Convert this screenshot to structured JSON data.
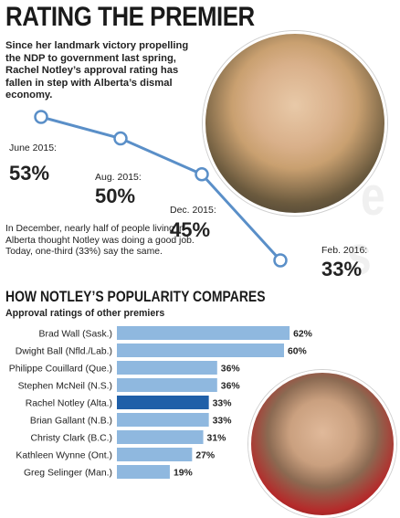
{
  "header": {
    "title": "RATING THE PREMIER",
    "intro": "Since her landmark victory propelling the NDP to government last spring, Rachel Notley’s approval rating has fallen in step with Alberta’s dismal economy."
  },
  "note": "In December, nearly half of people living in Alberta thought Notley was doing a good job. Today, one-third (33%) say the same.",
  "section": {
    "title": "HOW NOTLEY’S POPULARITY COMPARES",
    "subtitle": "Approval ratings of other premiers"
  },
  "colors": {
    "line": "#5a8fc8",
    "marker_fill": "#ffffff",
    "bar": "#8fb8df",
    "bar_highlight": "#1f5fa8",
    "text": "#1f1f1f"
  },
  "chart_data": [
    {
      "type": "line",
      "title": "",
      "points": [
        {
          "date_label": "June 2015:",
          "value_label": "53%",
          "value": 53
        },
        {
          "date_label": "Aug. 2015:",
          "value_label": "50%",
          "value": 50
        },
        {
          "date_label": "Dec. 2015:",
          "value_label": "45%",
          "value": 45
        },
        {
          "date_label": "Feb. 2016:",
          "value_label": "33%",
          "value": 33
        }
      ],
      "grid": false
    },
    {
      "type": "bar",
      "orientation": "horizontal",
      "categories": [
        "Brad Wall (Sask.)",
        "Dwight Ball (Nfld./Lab.)",
        "Philippe Couillard (Que.)",
        "Stephen McNeil (N.S.)",
        "Rachel Notley (Alta.)",
        "Brian Gallant (N.B.)",
        "Christy Clark (B.C.)",
        "Kathleen Wynne (Ont.)",
        "Greg Selinger (Man.)"
      ],
      "values": [
        62,
        60,
        36,
        36,
        33,
        33,
        31,
        27,
        19
      ],
      "value_labels": [
        "62%",
        "60%",
        "36%",
        "36%",
        "33%",
        "33%",
        "31%",
        "27%",
        "19%"
      ],
      "highlight": "Rachel Notley (Alta.)",
      "xlim": [
        0,
        100
      ],
      "grid": false
    }
  ]
}
